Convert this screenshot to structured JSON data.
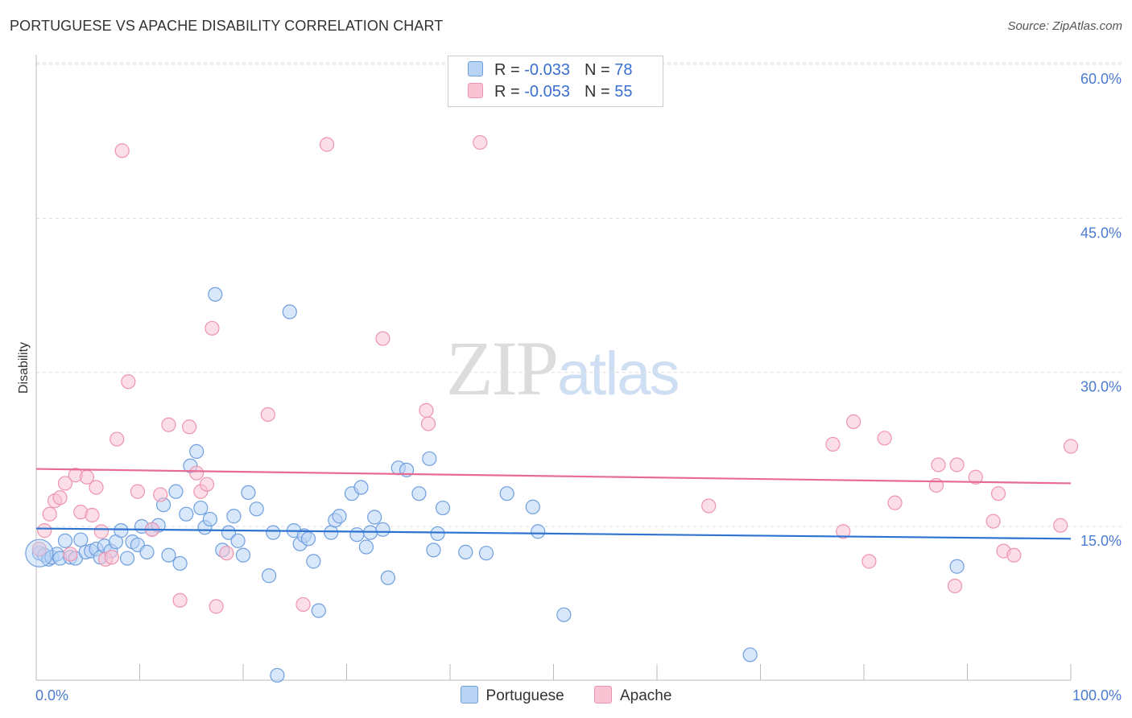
{
  "title": "PORTUGUESE VS APACHE DISABILITY CORRELATION CHART",
  "source": "Source: ZipAtlas.com",
  "watermark": {
    "zip": "ZIP",
    "atlas": "atlas"
  },
  "colors": {
    "portuguese_fill": "#b9d3f5",
    "portuguese_stroke": "#6f9fde",
    "portuguese_line": "#2f73d0",
    "apache_fill": "#f8c3d3",
    "apache_stroke": "#ee94b1",
    "apache_line": "#e86b93",
    "grid": "#dddddd",
    "axis": "#bbbbbb"
  },
  "legend": {
    "rows": [
      {
        "r_label": "R = ",
        "r_value": "-0.033",
        "n_label": "N = ",
        "n_value": "78"
      },
      {
        "r_label": "R = ",
        "r_value": "-0.053",
        "n_label": "N = ",
        "n_value": "55"
      }
    ]
  },
  "chart_data": {
    "type": "scatter",
    "title": "PORTUGUESE VS APACHE DISABILITY CORRELATION CHART",
    "xlabel": "",
    "ylabel": "Disability",
    "xlim": [
      0,
      100
    ],
    "ylim": [
      0,
      62
    ],
    "x_tick_labels": [
      {
        "value": 0,
        "label": "0.0%"
      },
      {
        "value": 100,
        "label": "100.0%"
      }
    ],
    "y_ticks": [
      {
        "value": 15,
        "label": "15.0%"
      },
      {
        "value": 30,
        "label": "30.0%"
      },
      {
        "value": 45,
        "label": "45.0%"
      },
      {
        "value": 60,
        "label": "60.0%"
      }
    ],
    "grid": "horizontal dashed",
    "legend_placement": "top-center",
    "series": [
      {
        "name": "Portuguese",
        "trend": {
          "x": [
            0,
            100
          ],
          "y": [
            14.8,
            13.8
          ]
        },
        "points": [
          [
            0.3,
            12.4
          ],
          [
            0.8,
            12.2
          ],
          [
            1.2,
            11.8
          ],
          [
            1.5,
            12.0
          ],
          [
            2.0,
            12.3
          ],
          [
            2.3,
            11.9
          ],
          [
            2.8,
            13.6
          ],
          [
            3.3,
            12.0
          ],
          [
            3.8,
            11.9
          ],
          [
            4.3,
            13.7
          ],
          [
            4.8,
            12.5
          ],
          [
            5.3,
            12.6
          ],
          [
            5.8,
            12.8
          ],
          [
            6.2,
            12.0
          ],
          [
            6.6,
            13.1
          ],
          [
            7.2,
            12.6
          ],
          [
            7.7,
            13.5
          ],
          [
            8.2,
            14.6
          ],
          [
            8.8,
            11.9
          ],
          [
            9.3,
            13.5
          ],
          [
            9.8,
            13.2
          ],
          [
            10.2,
            15.0
          ],
          [
            10.7,
            12.5
          ],
          [
            11.2,
            14.7
          ],
          [
            11.8,
            15.1
          ],
          [
            12.3,
            17.1
          ],
          [
            12.8,
            12.2
          ],
          [
            13.5,
            18.4
          ],
          [
            13.9,
            11.4
          ],
          [
            14.5,
            16.2
          ],
          [
            14.9,
            20.9
          ],
          [
            15.5,
            22.3
          ],
          [
            15.9,
            16.8
          ],
          [
            16.3,
            14.9
          ],
          [
            16.8,
            15.7
          ],
          [
            17.3,
            37.6
          ],
          [
            18.0,
            12.7
          ],
          [
            18.6,
            14.4
          ],
          [
            19.1,
            16.0
          ],
          [
            19.5,
            13.6
          ],
          [
            20.0,
            12.2
          ],
          [
            20.5,
            18.3
          ],
          [
            21.3,
            16.7
          ],
          [
            22.5,
            10.2
          ],
          [
            22.9,
            14.4
          ],
          [
            23.3,
            0.5
          ],
          [
            24.5,
            35.9
          ],
          [
            24.9,
            14.6
          ],
          [
            25.5,
            13.3
          ],
          [
            25.9,
            14.1
          ],
          [
            26.3,
            13.8
          ],
          [
            26.8,
            11.6
          ],
          [
            27.3,
            6.8
          ],
          [
            28.5,
            14.4
          ],
          [
            28.9,
            15.6
          ],
          [
            29.3,
            16.0
          ],
          [
            30.5,
            18.2
          ],
          [
            31.0,
            14.2
          ],
          [
            31.4,
            18.8
          ],
          [
            31.9,
            13.0
          ],
          [
            32.3,
            14.4
          ],
          [
            32.7,
            15.9
          ],
          [
            33.5,
            14.7
          ],
          [
            34.0,
            10.0
          ],
          [
            35.0,
            20.7
          ],
          [
            35.8,
            20.5
          ],
          [
            37.0,
            18.2
          ],
          [
            38.0,
            21.6
          ],
          [
            38.4,
            12.7
          ],
          [
            38.8,
            14.3
          ],
          [
            39.3,
            16.8
          ],
          [
            41.5,
            12.5
          ],
          [
            43.5,
            12.4
          ],
          [
            45.5,
            18.2
          ],
          [
            48.0,
            16.9
          ],
          [
            48.5,
            14.5
          ],
          [
            51.0,
            6.4
          ],
          [
            69.0,
            2.5
          ],
          [
            89.0,
            11.1
          ]
        ]
      },
      {
        "name": "Apache",
        "trend": {
          "x": [
            0,
            100
          ],
          "y": [
            20.6,
            19.2
          ]
        },
        "points": [
          [
            0.3,
            12.8
          ],
          [
            0.8,
            14.6
          ],
          [
            1.3,
            16.2
          ],
          [
            1.8,
            17.5
          ],
          [
            2.3,
            17.8
          ],
          [
            2.8,
            19.2
          ],
          [
            3.3,
            12.3
          ],
          [
            3.8,
            20.0
          ],
          [
            4.3,
            16.4
          ],
          [
            4.9,
            19.8
          ],
          [
            5.4,
            16.1
          ],
          [
            5.8,
            18.8
          ],
          [
            6.3,
            14.5
          ],
          [
            6.7,
            11.8
          ],
          [
            7.3,
            12.0
          ],
          [
            7.8,
            23.5
          ],
          [
            8.3,
            51.6
          ],
          [
            8.9,
            29.1
          ],
          [
            9.8,
            18.4
          ],
          [
            11.2,
            14.7
          ],
          [
            12.0,
            18.1
          ],
          [
            12.8,
            24.9
          ],
          [
            13.9,
            7.8
          ],
          [
            14.8,
            24.7
          ],
          [
            15.5,
            20.2
          ],
          [
            15.9,
            18.4
          ],
          [
            16.5,
            19.1
          ],
          [
            17.0,
            34.3
          ],
          [
            17.4,
            7.2
          ],
          [
            18.4,
            12.4
          ],
          [
            22.4,
            25.9
          ],
          [
            25.8,
            7.4
          ],
          [
            28.1,
            52.2
          ],
          [
            33.5,
            33.3
          ],
          [
            37.7,
            26.3
          ],
          [
            37.9,
            25.0
          ],
          [
            42.9,
            52.4
          ],
          [
            65.0,
            17.0
          ],
          [
            77.0,
            23.0
          ],
          [
            78.0,
            14.5
          ],
          [
            79.0,
            25.2
          ],
          [
            80.5,
            11.6
          ],
          [
            82.0,
            23.6
          ],
          [
            83.0,
            17.3
          ],
          [
            87.0,
            19.0
          ],
          [
            87.2,
            21.0
          ],
          [
            88.8,
            9.2
          ],
          [
            89.0,
            21.0
          ],
          [
            90.8,
            19.8
          ],
          [
            92.5,
            15.5
          ],
          [
            93.0,
            18.2
          ],
          [
            93.5,
            12.6
          ],
          [
            94.5,
            12.2
          ],
          [
            99.0,
            15.1
          ],
          [
            100.0,
            22.8
          ]
        ]
      }
    ]
  }
}
